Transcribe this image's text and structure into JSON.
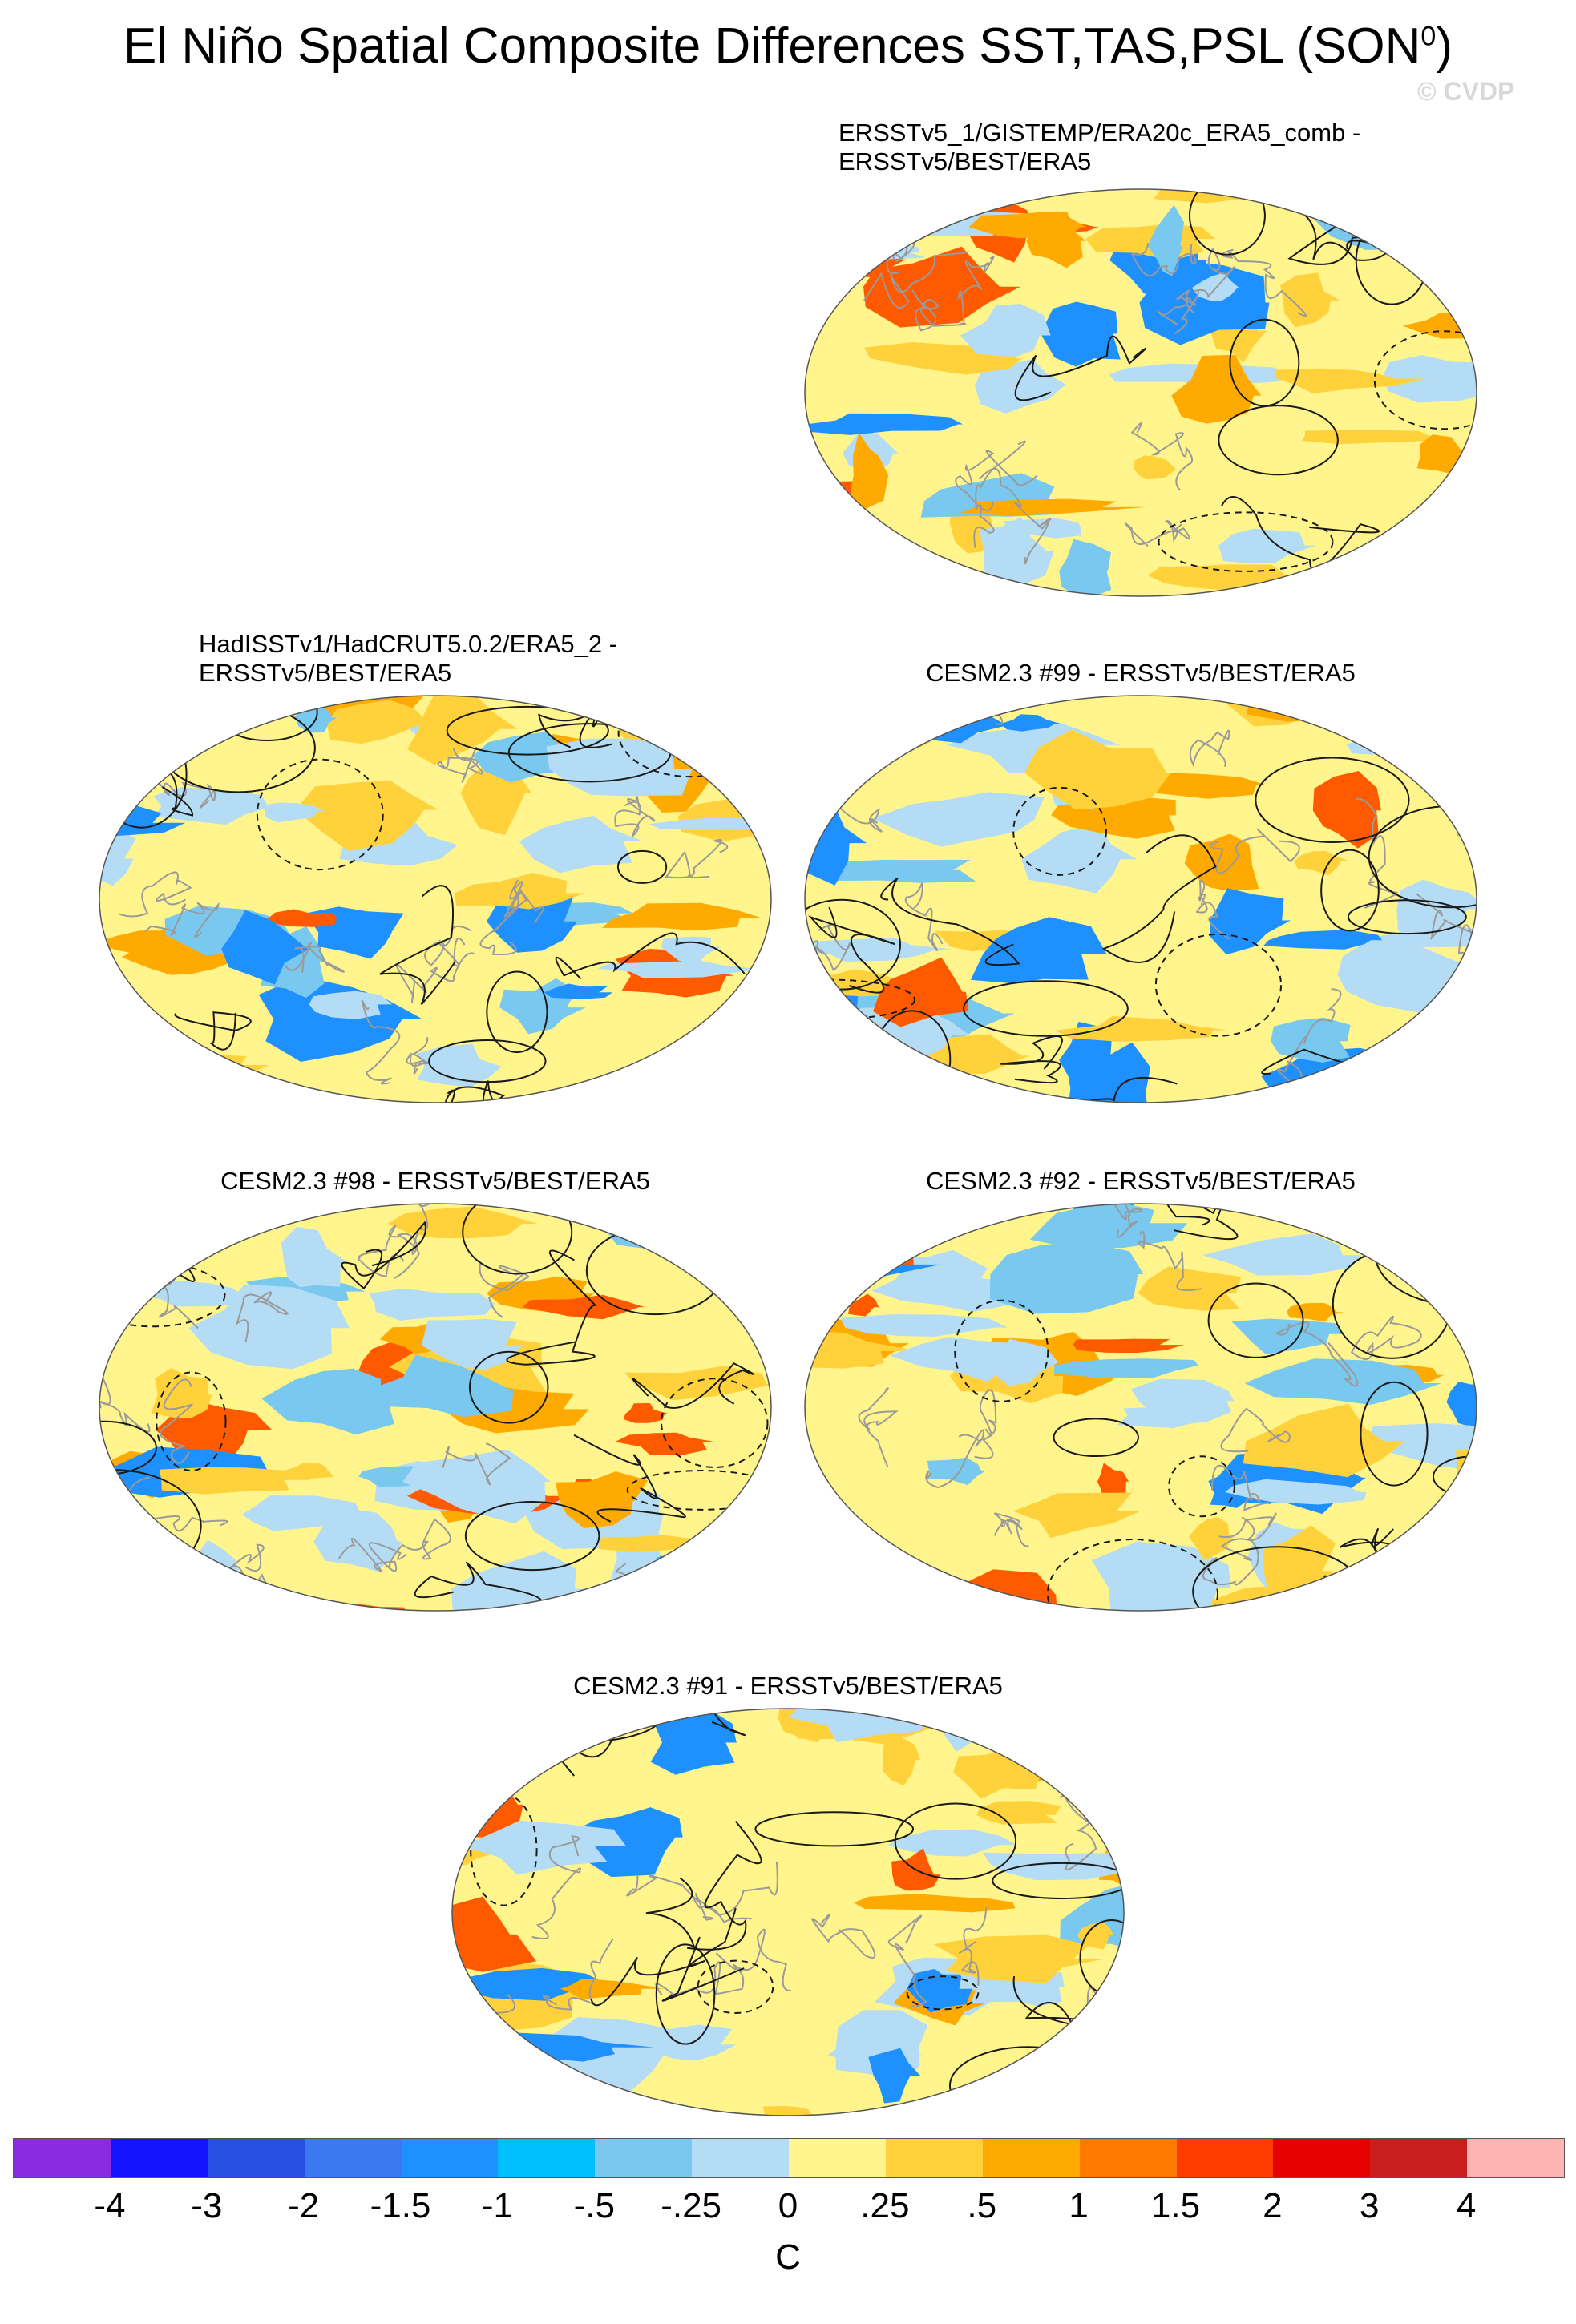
{
  "title": {
    "main": "El Niño Spatial Composite Differences SST,TAS,PSL (SON",
    "superscript": "0",
    "close": ")"
  },
  "copyright": "© CVDP",
  "panels": [
    {
      "label_line1": "ERSSTv5_1/GISTEMP/ERA20c_ERA5_comb -",
      "label_line2": "ERSSTv5/BEST/ERA5"
    },
    {
      "label_line1": "HadISSTv1/HadCRUT5.0.2/ERA5_2 -",
      "label_line2": "ERSSTv5/BEST/ERA5"
    },
    {
      "label_line1": "CESM2.3 #99 - ERSSTv5/BEST/ERA5",
      "label_line2": ""
    },
    {
      "label_line1": "CESM2.3 #98 - ERSSTv5/BEST/ERA5",
      "label_line2": ""
    },
    {
      "label_line1": "CESM2.3 #92 - ERSSTv5/BEST/ERA5",
      "label_line2": ""
    },
    {
      "label_line1": "CESM2.3 #91 - ERSSTv5/BEST/ERA5",
      "label_line2": ""
    }
  ],
  "colorbar": {
    "colors": [
      "#8a2be2",
      "#1414ff",
      "#2850e0",
      "#3c78f0",
      "#1e90ff",
      "#00bfff",
      "#78c8f0",
      "#b4dcf5",
      "#fff58c",
      "#ffd23c",
      "#ffaa00",
      "#ff7800",
      "#ff3c00",
      "#e60000",
      "#c81e1e",
      "#ffb4b4"
    ],
    "ticks": [
      "-4",
      "-3",
      "-2",
      "-1.5",
      "-1",
      "-.5",
      "-.25",
      "0",
      ".25",
      ".5",
      "1",
      "1.5",
      "2",
      "3",
      "4"
    ],
    "unit": "C"
  },
  "map_palette": {
    "background": "#fff58c",
    "cool": "#b4dcf5",
    "cooler": "#78c8f0",
    "coolest": "#1e90ff",
    "warm": "#ffd23c",
    "warmer": "#ffaa00",
    "hot": "#ff5a00",
    "coast": "#9a9a9a",
    "contour": "#1a1a1a"
  }
}
